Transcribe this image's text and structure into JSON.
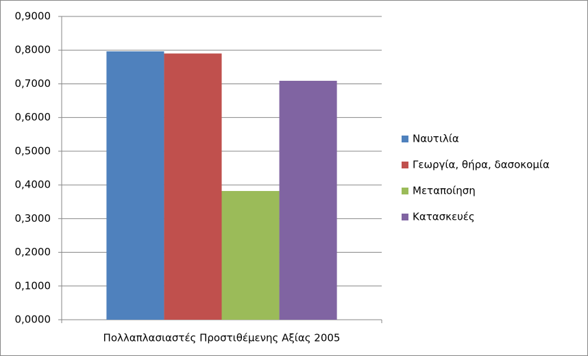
{
  "chart_data": {
    "type": "bar",
    "categories": [
      "Πολλαπλασιαστές Προστιθέμενης Αξίας 2005"
    ],
    "series": [
      {
        "name": "Ναυτιλία",
        "color": "#4F81BD",
        "values": [
          0.7964
        ]
      },
      {
        "name": "Γεωργία, θήρα, δασοκομία",
        "color": "#C0504D",
        "values": [
          0.79
        ]
      },
      {
        "name": "Μεταποίηση",
        "color": "#9BBB59",
        "values": [
          0.382
        ]
      },
      {
        "name": "Κατασκευές",
        "color": "#8064A2",
        "values": [
          0.709
        ]
      }
    ],
    "ylim": [
      0,
      0.9
    ],
    "yticks": [
      {
        "value": 0,
        "label": "0,0000"
      },
      {
        "value": 0.1,
        "label": "0,1000"
      },
      {
        "value": 0.2,
        "label": "0,2000"
      },
      {
        "value": 0.3,
        "label": "0,3000"
      },
      {
        "value": 0.4,
        "label": "0,4000"
      },
      {
        "value": 0.5,
        "label": "0,5000"
      },
      {
        "value": 0.6,
        "label": "0,6000"
      },
      {
        "value": 0.7,
        "label": "0,7000"
      },
      {
        "value": 0.8,
        "label": "0,8000"
      },
      {
        "value": 0.9,
        "label": "0,9000"
      }
    ],
    "grid": true,
    "legend": "right"
  }
}
